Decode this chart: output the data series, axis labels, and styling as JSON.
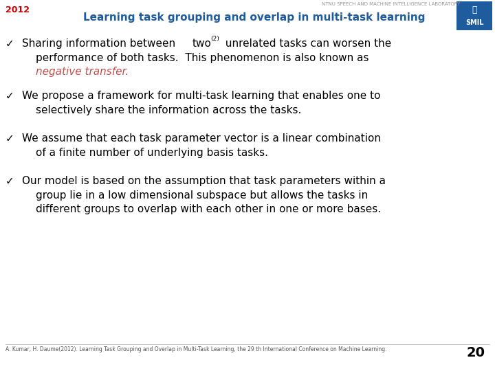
{
  "year": "2012",
  "header_lab": "NTNU SPEECH AND MACHINE INTELLIGENCE LABORATORY",
  "title": "Learning task grouping and overlap in multi-task learning",
  "bullet1_p1": "Sharing information between ",
  "bullet1_two": "two",
  "bullet1_sup": "(2)",
  "bullet1_p2": " unrelated tasks can worsen the",
  "bullet1_line2": "performance of both tasks.  This phenomenon is also known as",
  "bullet1_red": "negative transfer.",
  "bullet2": "We propose a framework for multi-task learning that enables one to\nselectively share the information across the tasks.",
  "bullet3": "We assume that each task parameter vector is a linear combination\nof a finite number of underlying basis tasks.",
  "bullet4": "Our model is based on the assumption that task parameters within a\ngroup lie in a low dimensional subspace but allows the tasks in\ndifferent groups to overlap with each other in one or more bases.",
  "footer": "A. Kumar, H. Daume(2012). Learning Task Grouping and Overlap in Multi-Task Learning, the 29 th International Conference on Machine Learning.",
  "page_number": "20",
  "bg_color": "#ffffff",
  "title_color": "#1F5C9E",
  "year_color": "#CC0000",
  "bullet_color": "#000000",
  "italic_red_color": "#C0504D",
  "footer_color": "#555555",
  "header_lab_color": "#999999",
  "smil_box_color": "#1F5C9E",
  "checkmark": "✓",
  "year_fontsize": 9,
  "header_lab_fontsize": 5,
  "title_fontsize": 11,
  "bullet_fontsize": 11,
  "check_fontsize": 11,
  "footer_fontsize": 5.5,
  "page_fontsize": 14
}
